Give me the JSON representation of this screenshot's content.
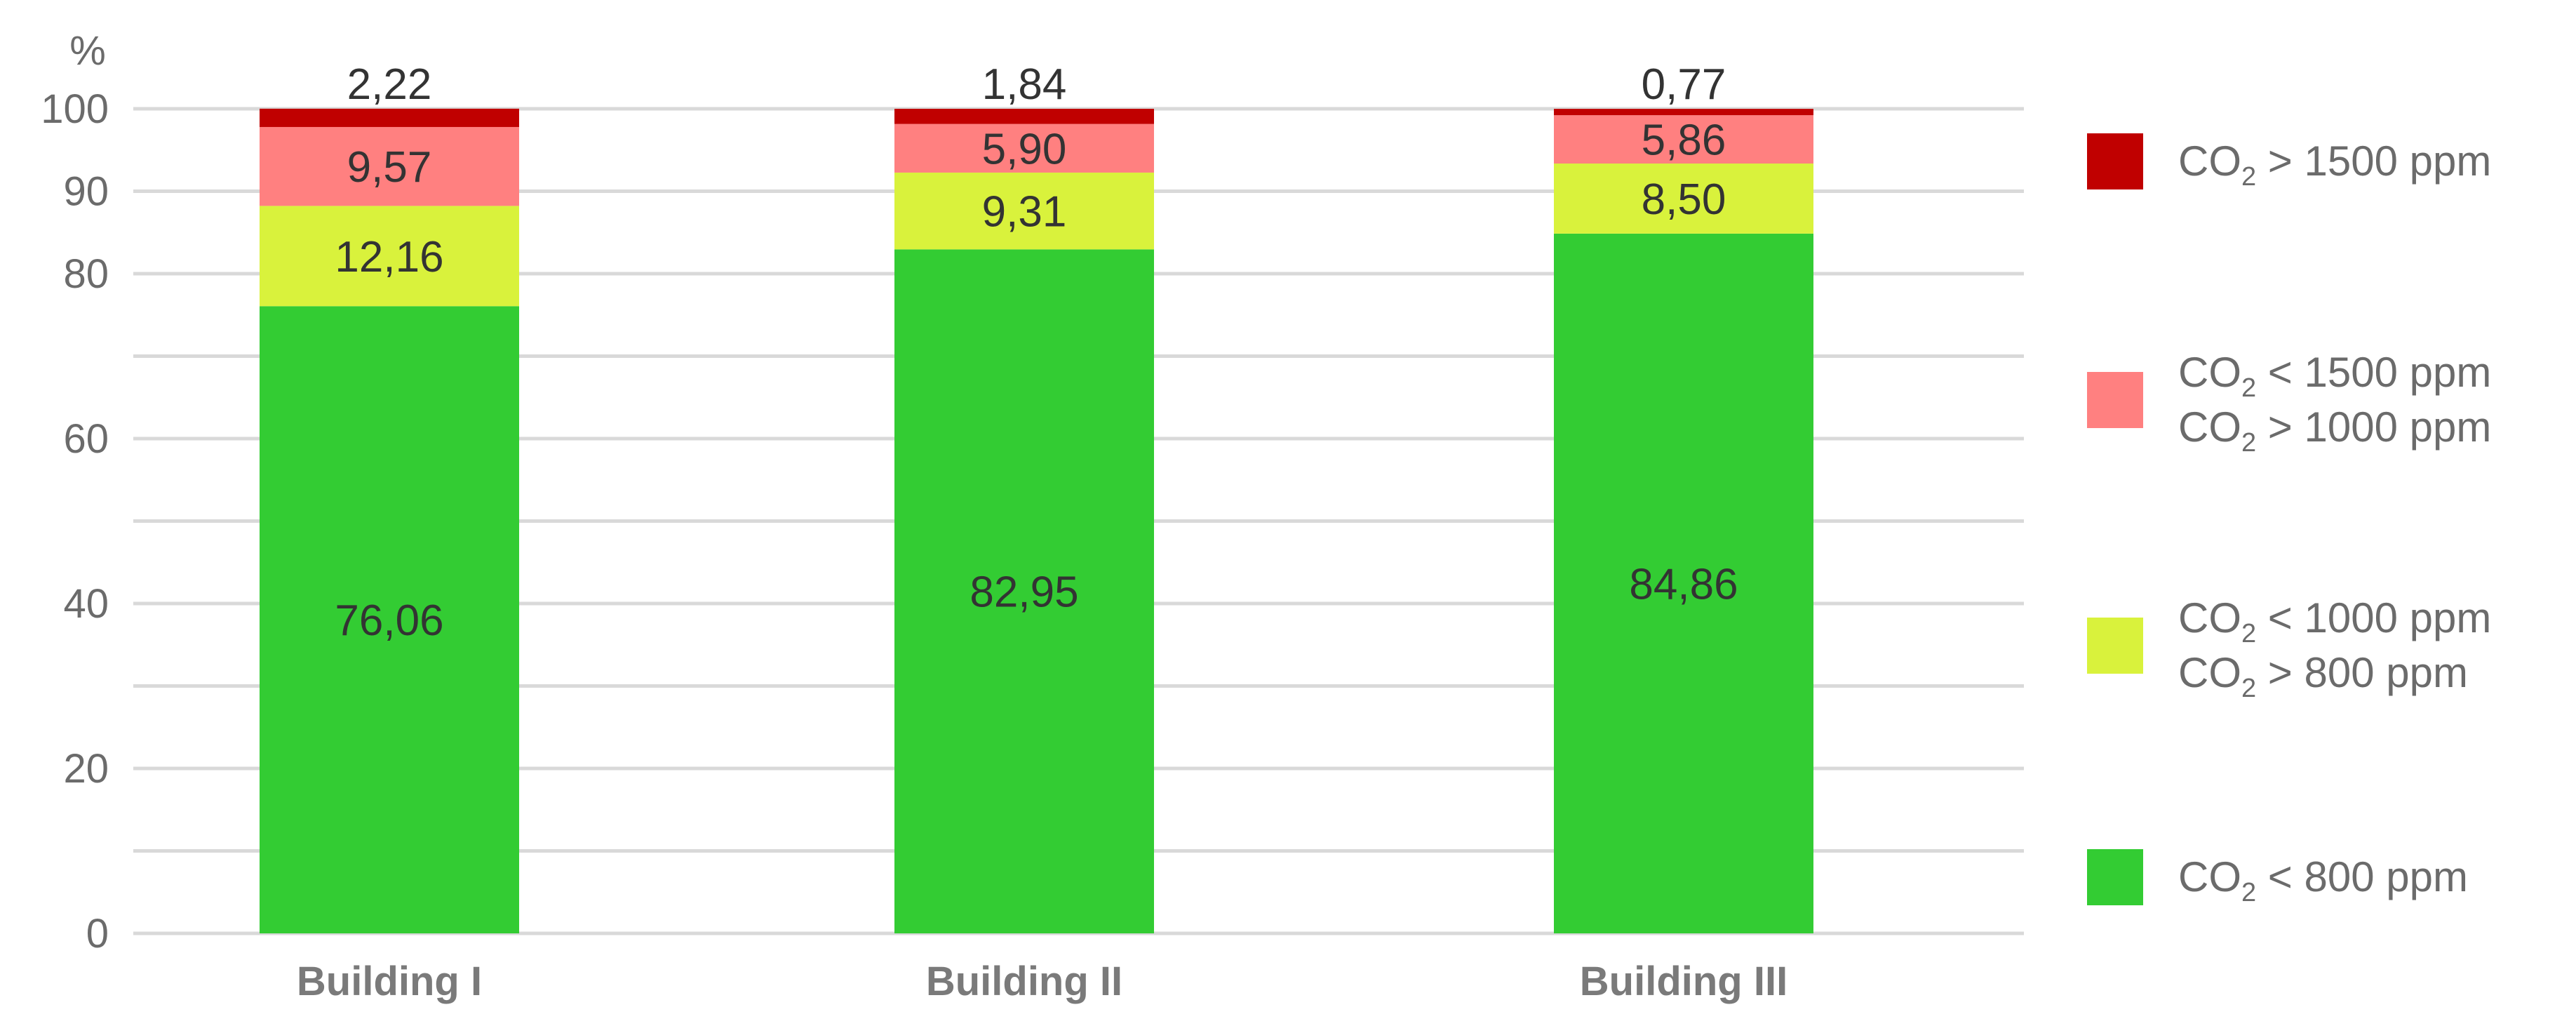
{
  "chart_data": {
    "type": "bar",
    "stacked": true,
    "ylabel": "%",
    "ylim": [
      0,
      100
    ],
    "yticks": [
      0,
      20,
      40,
      60,
      80,
      90,
      100
    ],
    "grid": true,
    "legend_position": "right",
    "categories": [
      "Building I",
      "Building II",
      "Building III"
    ],
    "series": [
      {
        "key": "s800",
        "legend_lines": [
          {
            "pre": "CO",
            "sub": "2",
            "post": " < 800 ppm"
          }
        ],
        "color": "#33cc33",
        "values": [
          76.06,
          82.95,
          84.86
        ],
        "labels": [
          "76,06",
          "82,95",
          "84,86"
        ]
      },
      {
        "key": "s1000",
        "legend_lines": [
          {
            "pre": "CO",
            "sub": "2",
            "post": " < 1000 ppm"
          },
          {
            "pre": "CO",
            "sub": "2",
            "post": " > 800 ppm"
          }
        ],
        "color": "#d9f23c",
        "values": [
          12.16,
          9.31,
          8.5
        ],
        "labels": [
          "12,16",
          "9,31",
          "8,50"
        ]
      },
      {
        "key": "s1500",
        "legend_lines": [
          {
            "pre": "CO",
            "sub": "2",
            "post": " < 1500 ppm"
          },
          {
            "pre": "CO",
            "sub": "2",
            "post": " > 1000 ppm"
          }
        ],
        "color": "#ff8080",
        "values": [
          9.57,
          5.9,
          5.86
        ],
        "labels": [
          "9,57",
          "5,90",
          "5,86"
        ]
      },
      {
        "key": "sover",
        "legend_lines": [
          {
            "pre": "CO",
            "sub": "2",
            "post": " > 1500 ppm"
          }
        ],
        "color": "#c00000",
        "values": [
          2.22,
          1.84,
          0.77
        ],
        "labels": [
          "2,22",
          "1,84",
          "0,77"
        ]
      }
    ]
  }
}
